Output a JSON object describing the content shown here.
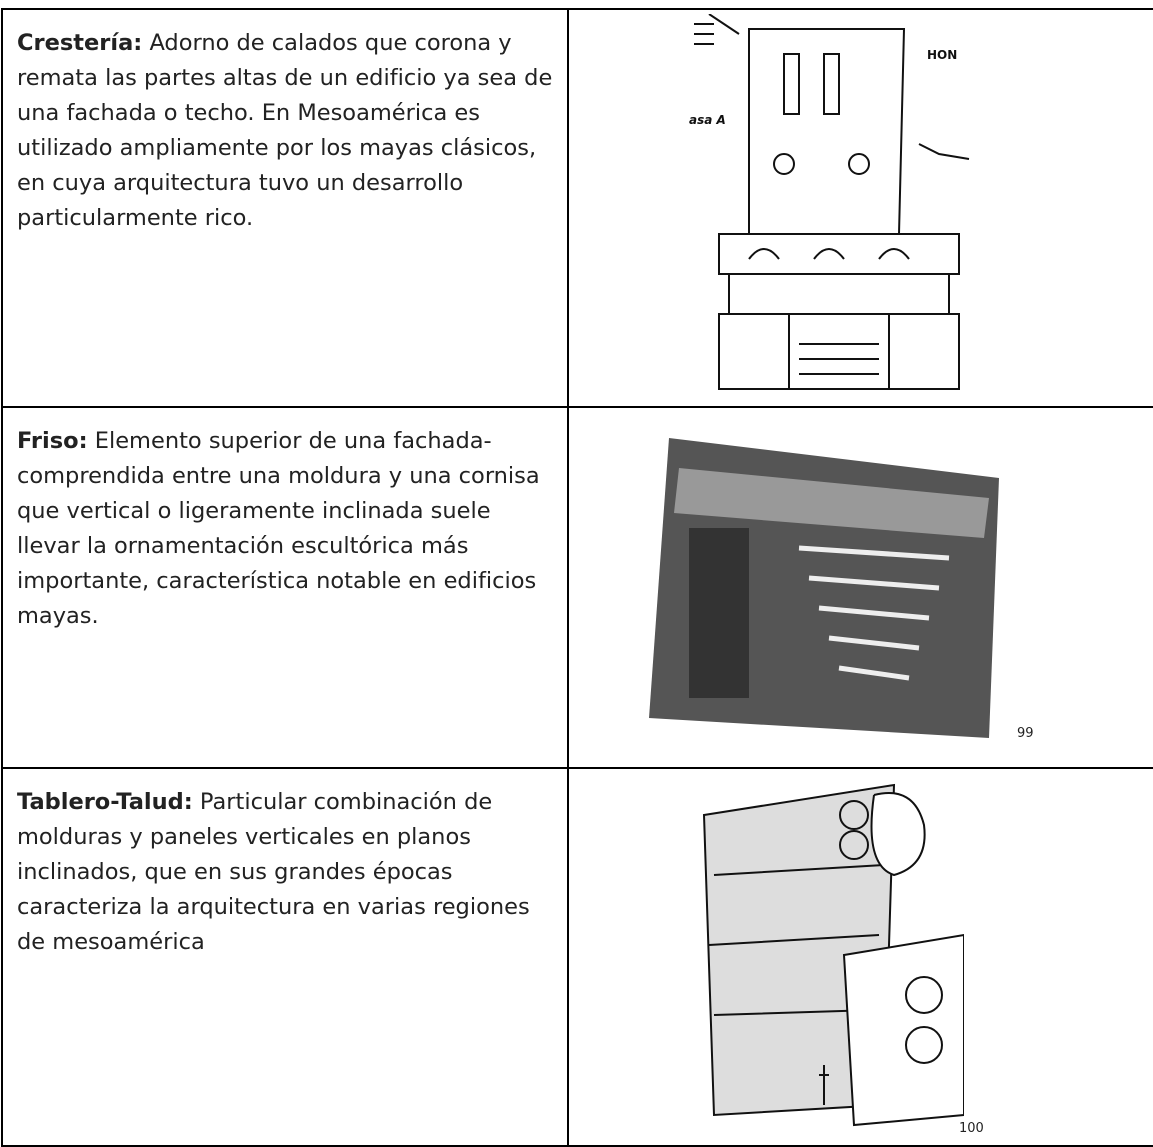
{
  "rows": [
    {
      "term": "Crestería:",
      "definition": "Adorno de calados que corona y remata las partes altas de un edificio ya sea de una fachada o techo. En Mesoamérica es utilizado ampliamente por los mayas clásicos, en cuya arquitectura tuvo un desarrollo particularmente rico.",
      "image_labels": [
        "HON",
        "asa A"
      ]
    },
    {
      "term": "Friso:",
      "definition": "Elemento superior de una fachada- comprendida entre una moldura y una cornisa que vertical o ligeramente inclinada suele llevar la ornamentación escultórica más importante, característica notable en edificios mayas.",
      "footnote": "99"
    },
    {
      "term": "Tablero-Talud:",
      "definition": "Particular combinación de molduras y paneles verticales en planos inclinados, que en sus grandes épocas caracteriza la arquitectura en varias regiones de mesoamérica",
      "footnote": "100"
    }
  ]
}
